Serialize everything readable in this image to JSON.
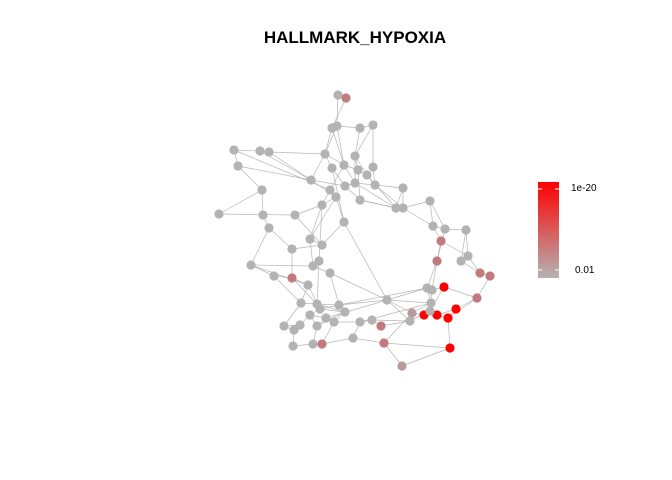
{
  "title": "HALLMARK_HYPOXIA",
  "legend": {
    "labels": [
      "1e-20",
      "0.01"
    ],
    "color_high": "#ff0000",
    "color_low": "#b3b3b3"
  },
  "colors": {
    "edge": "#9a9a9a",
    "node_low": "#b3b3b3",
    "node_high": "#ff0000"
  },
  "nodes_red": 7,
  "nodes_pink": 9
}
